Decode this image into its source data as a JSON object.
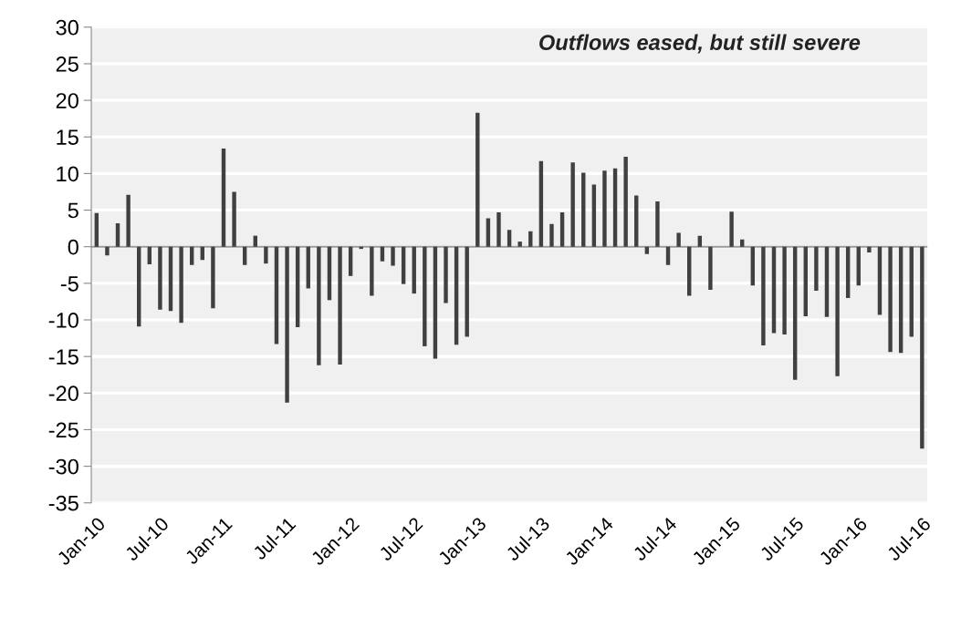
{
  "chart_data": {
    "type": "bar",
    "categories": [
      "Jan-10",
      null,
      null,
      null,
      null,
      null,
      "Jul-10",
      null,
      null,
      null,
      null,
      null,
      "Jan-11",
      null,
      null,
      null,
      null,
      null,
      "Jul-11",
      null,
      null,
      null,
      null,
      null,
      "Jan-12",
      null,
      null,
      null,
      null,
      null,
      "Jul-12",
      null,
      null,
      null,
      null,
      null,
      "Jan-13",
      null,
      null,
      null,
      null,
      null,
      "Jul-13",
      null,
      null,
      null,
      null,
      null,
      "Jan-14",
      null,
      null,
      null,
      null,
      null,
      "Jul-14",
      null,
      null,
      null,
      null,
      null,
      "Jan-15",
      null,
      null,
      null,
      null,
      null,
      "Jul-15",
      null,
      null,
      null,
      null,
      null,
      "Jan-16",
      null,
      null,
      null,
      null,
      null,
      "Jul-16"
    ],
    "values": [
      4.6,
      -1.2,
      3.2,
      7.1,
      -10.9,
      -2.4,
      -8.6,
      -8.8,
      -10.4,
      -2.5,
      -1.8,
      -8.4,
      13.4,
      7.5,
      -2.5,
      1.5,
      -2.3,
      -13.3,
      -21.3,
      -11.0,
      -5.7,
      -16.2,
      -7.3,
      -16.1,
      -4.0,
      -0.3,
      -6.7,
      -2.0,
      -2.6,
      -5.1,
      -6.4,
      -13.6,
      -15.3,
      -7.7,
      -13.4,
      -12.3,
      18.3,
      3.9,
      4.7,
      2.3,
      0.7,
      2.1,
      11.7,
      3.1,
      4.7,
      11.5,
      10.1,
      8.5,
      10.4,
      10.7,
      12.3,
      7.0,
      -1.0,
      6.2,
      -2.5,
      1.9,
      -6.7,
      1.5,
      -5.9,
      0,
      4.8,
      1.0,
      -5.3,
      -13.5,
      -11.8,
      -12.0,
      -18.2,
      -9.5,
      -6.0,
      -9.6,
      -17.7,
      -7.0,
      -5.3,
      -0.8,
      -9.3,
      -14.4,
      -14.5,
      -12.3,
      -27.6
    ],
    "color": "#404040",
    "ylim": [
      -35,
      30
    ],
    "yticks": [
      -35,
      -30,
      -25,
      -20,
      -15,
      -10,
      -5,
      0,
      5,
      10,
      15,
      20,
      25,
      30
    ],
    "grid": "y",
    "annotations": [
      "Outflows eased, but still severe"
    ]
  }
}
